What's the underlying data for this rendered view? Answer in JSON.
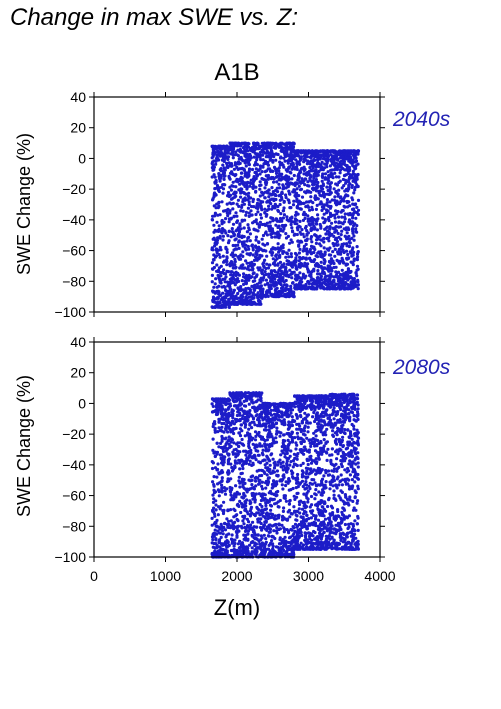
{
  "page": {
    "heading": "Change in max SWE vs. Z:"
  },
  "colors": {
    "points": "#1c1cc8",
    "period_label": "#2323b4",
    "axes": "#000000"
  },
  "chart_data": [
    {
      "type": "scatter",
      "title": "A1B",
      "period_label": "2040s",
      "xlabel": "",
      "ylabel": "SWE Change (%)",
      "xlim": [
        0,
        4000
      ],
      "ylim": [
        -100,
        40
      ],
      "x_ticks": [
        0,
        1000,
        2000,
        3000,
        4000
      ],
      "y_ticks": [
        40,
        20,
        0,
        -20,
        -40,
        -60,
        -80,
        -100
      ],
      "y_tick_labels": [
        "40",
        "20",
        "0",
        "−20",
        "−40",
        "−60",
        "−80",
        "−100"
      ],
      "grid": false,
      "series": [
        {
          "x_range": [
            1650,
            3700
          ],
          "y_ranges": [
            {
              "x": [
                1650,
                1900
              ],
              "y": [
                -97,
                8
              ]
            },
            {
              "x": [
                1900,
                2350
              ],
              "y": [
                -95,
                10
              ]
            },
            {
              "x": [
                2350,
                2800
              ],
              "y": [
                -90,
                10
              ]
            },
            {
              "x": [
                2800,
                3300
              ],
              "y": [
                -85,
                5
              ]
            },
            {
              "x": [
                3300,
                3700
              ],
              "y": [
                -85,
                5
              ]
            }
          ]
        }
      ]
    },
    {
      "type": "scatter",
      "title": "",
      "period_label": "2080s",
      "xlabel": "Z(m)",
      "ylabel": "SWE Change (%)",
      "xlim": [
        0,
        4000
      ],
      "ylim": [
        -100,
        40
      ],
      "x_ticks": [
        0,
        1000,
        2000,
        3000,
        4000
      ],
      "x_tick_labels": [
        "0",
        "1000",
        "2000",
        "3000",
        "4000"
      ],
      "y_ticks": [
        40,
        20,
        0,
        -20,
        -40,
        -60,
        -80,
        -100
      ],
      "y_tick_labels": [
        "40",
        "20",
        "0",
        "−20",
        "−40",
        "−60",
        "−80",
        "−100"
      ],
      "grid": false,
      "series": [
        {
          "x_range": [
            1650,
            3700
          ],
          "y_ranges": [
            {
              "x": [
                1650,
                1900
              ],
              "y": [
                -100,
                3
              ]
            },
            {
              "x": [
                1900,
                2350
              ],
              "y": [
                -100,
                7
              ]
            },
            {
              "x": [
                2350,
                2800
              ],
              "y": [
                -100,
                0
              ]
            },
            {
              "x": [
                2800,
                3300
              ],
              "y": [
                -95,
                5
              ]
            },
            {
              "x": [
                3300,
                3700
              ],
              "y": [
                -95,
                6
              ]
            }
          ]
        }
      ]
    }
  ]
}
